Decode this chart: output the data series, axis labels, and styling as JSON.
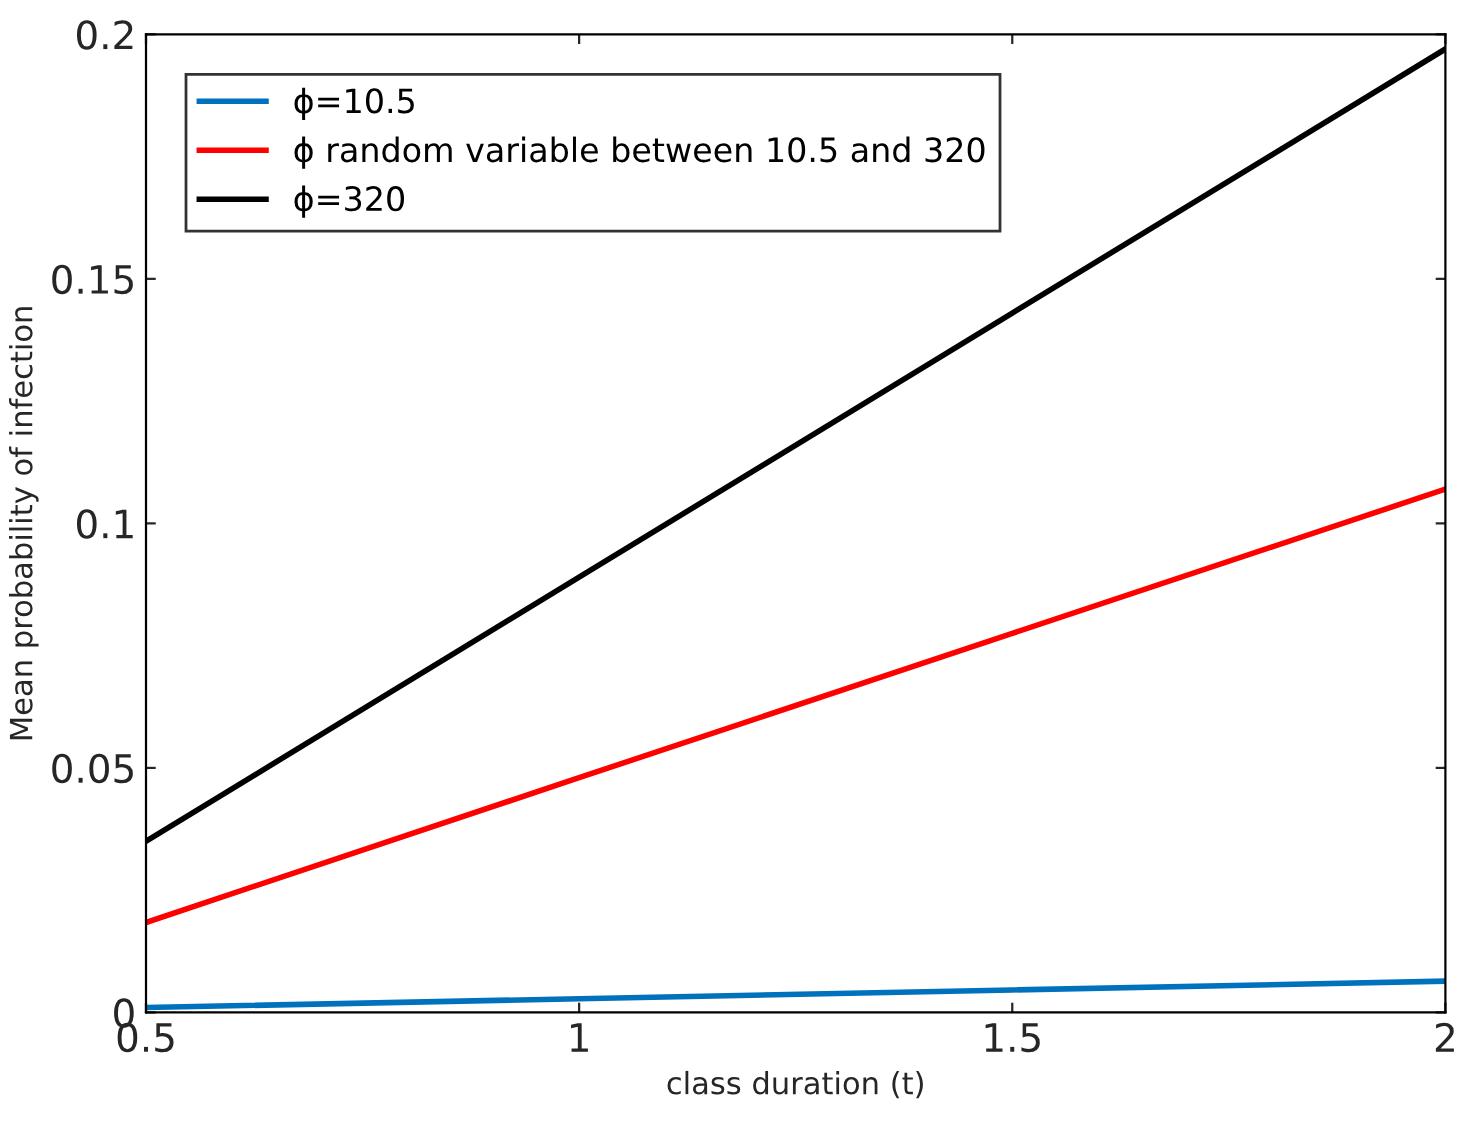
{
  "chart_data": {
    "type": "line",
    "xlabel": "class duration (t)",
    "ylabel": "Mean probability of infection",
    "x": [
      0.5,
      1,
      1.5,
      2
    ],
    "series": [
      {
        "name": "ϕ=10.5",
        "color": "#0072bd",
        "values": [
          0.001,
          0.0028,
          0.0046,
          0.0064
        ]
      },
      {
        "name": "ϕ random variable between 10.5 and 320",
        "color": "#ff0000",
        "values": [
          0.0184,
          0.048,
          0.0775,
          0.107
        ]
      },
      {
        "name": "ϕ=320",
        "color": "#000000",
        "values": [
          0.035,
          0.089,
          0.143,
          0.197
        ]
      }
    ],
    "xlim": [
      0.5,
      2
    ],
    "xticks": [
      0.5,
      1,
      1.5,
      2
    ],
    "ylim": [
      0,
      0.2
    ],
    "yticks": [
      0,
      0.05,
      0.1,
      0.15,
      0.2
    ],
    "grid": false,
    "legend": "top left",
    "marker": "none",
    "line_style": "solid"
  }
}
